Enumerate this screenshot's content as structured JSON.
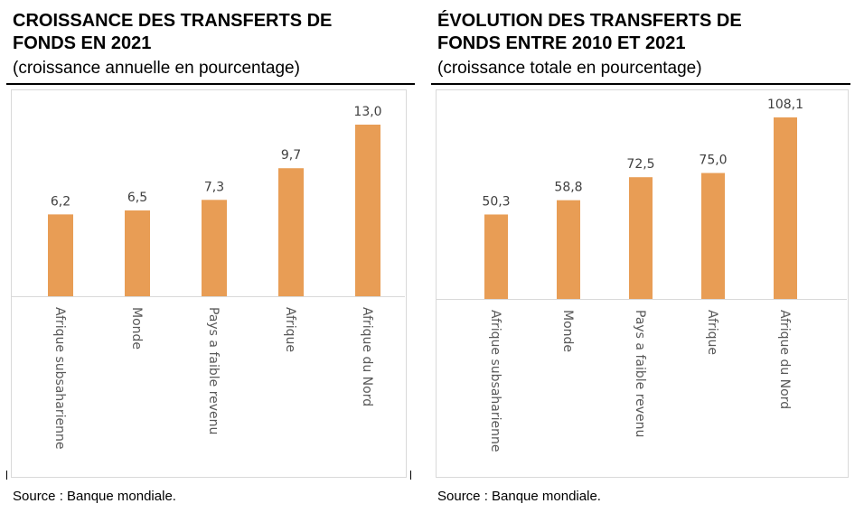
{
  "charts": [
    {
      "title_line1": "CROISSANCE DES TRANSFERTS DE",
      "title_line2": "FONDS EN 2021",
      "subtitle": "(croissance annuelle en pourcentage)",
      "source": "Source : Banque mondiale.",
      "bar_color": "#e89d55"
    },
    {
      "title_line1": "ÉVOLUTION DES TRANSFERTS DE",
      "title_line2": "FONDS ENTRE 2010 ET 2021",
      "subtitle": "(croissance totale en pourcentage)",
      "source": "Source :  Banque mondiale.",
      "bar_color": "#e89d55"
    }
  ],
  "chart_data": [
    {
      "type": "bar",
      "title": "CROISSANCE DES TRANSFERTS DE FONDS EN 2021",
      "subtitle": "(croissance annuelle en pourcentage)",
      "categories": [
        "Afrique subsaharienne",
        "Monde",
        "Pays a faible revenu",
        "Afrique",
        "Afrique du Nord"
      ],
      "values": [
        6.2,
        6.5,
        7.3,
        9.7,
        13.0
      ],
      "labels": [
        "6,2",
        "6,5",
        "7,3",
        "9,7",
        "13,0"
      ],
      "grid": false
    },
    {
      "type": "bar",
      "title": "ÉVOLUTION DES TRANSFERTS DE FONDS ENTRE 2010 ET 2021",
      "subtitle": "(croissance totale en pourcentage)",
      "categories": [
        "Afrique subsaharienne",
        "Monde",
        "Pays a faible revenu",
        "Afrique",
        "Afrique du Nord"
      ],
      "values": [
        50.3,
        58.8,
        72.5,
        75.0,
        108.1
      ],
      "labels": [
        "50,3",
        "58,8",
        "72,5",
        "75,0",
        "108,1"
      ],
      "grid": false
    }
  ]
}
